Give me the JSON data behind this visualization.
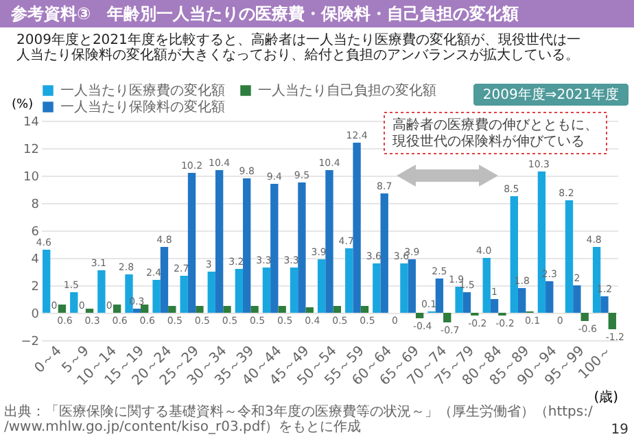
{
  "chart_data": {
    "type": "bar",
    "title": "参考資料③　年齢別一人当たりの医療費・保険料・自己負担の変化額",
    "subtitle": "2009年度と2021年度を比較すると、高齢者は一人当たり医療費の変化額が、現役世代は一人当たり保険料の変化額が大きくなっており、給付と負担のアンバランスが拡大している。",
    "ylabel": "(%)",
    "xlabel": "(歳)",
    "categories": [
      "0～4",
      "5～9",
      "10～14",
      "15～19",
      "20～24",
      "25～29",
      "30～34",
      "35～39",
      "40～44",
      "45～49",
      "50～54",
      "55～59",
      "60～64",
      "65～69",
      "70～74",
      "75～79",
      "80～84",
      "85～89",
      "90～94",
      "95～99",
      "100～"
    ],
    "series": [
      {
        "name": "一人当たり医療費の変化額",
        "color": "#1aa7e0",
        "values": [
          4.6,
          1.5,
          3.1,
          2.8,
          2.4,
          2.7,
          3,
          3.2,
          3.3,
          3.3,
          3.9,
          4.7,
          3.6,
          3.6,
          0.1,
          1.9,
          4.0,
          8.5,
          10.3,
          8.2,
          4.8
        ],
        "value_labels": [
          "4.6",
          "1.5",
          "3.1",
          "2.8",
          "2.4",
          "2.7",
          "3",
          "3.2",
          "3.3",
          "3.3",
          "3.9",
          "4.7",
          "3.6",
          "3.6",
          "0.1",
          "1.9",
          "4.0",
          "8.5",
          "10.3",
          "8.2",
          "4.8"
        ]
      },
      {
        "name": "一人当たり保険料の変化額",
        "color": "#2176c4",
        "values": [
          0,
          0,
          0,
          0.3,
          4.8,
          10.2,
          10.4,
          9.8,
          9.4,
          9.5,
          10.4,
          12.4,
          8.7,
          3.9,
          2.5,
          1.5,
          1,
          1.8,
          2.3,
          2,
          1.2
        ],
        "value_labels": [
          "0",
          "0",
          "0",
          "0.3",
          "4.8",
          "10.2",
          "10.4",
          "9.8",
          "9.4",
          "9.5",
          "10.4",
          "12.4",
          "8.7",
          "3.9",
          "2.5",
          "1.5",
          "1",
          "1.8",
          "2.3",
          "2",
          "1.2"
        ]
      },
      {
        "name": "一人当たり自己負担の変化額",
        "color": "#2e7d3e",
        "values": [
          0.6,
          0.3,
          0.6,
          0.6,
          0.5,
          0.5,
          0.5,
          0.5,
          0.5,
          0.4,
          0.5,
          0.5,
          0,
          -0.4,
          -0.7,
          -0.2,
          -0.2,
          0.1,
          0,
          -0.6,
          -1.2
        ],
        "value_labels": [
          "0.6",
          "0.3",
          "0.6",
          "0.6",
          "0.5",
          "0.5",
          "0.5",
          "0.5",
          "0.5",
          "0.4",
          "0.5",
          "0.5",
          "0",
          "-0.4",
          "-0.7",
          "-0.2",
          "-0.2",
          "0.1",
          "0",
          "-0.6",
          "-1.2"
        ]
      }
    ],
    "ylim": [
      -2,
      14
    ],
    "yticks": [
      -2,
      0,
      2,
      4,
      6,
      8,
      10,
      12,
      14
    ],
    "grid": "y",
    "legend": "top left",
    "annotations": [
      "高齢者の医療費の伸びとともに、現役世代の保険料が伸びている",
      "2009年度⇒2021年度",
      "出典：「医療保険に関する基礎資料～令和3年度の医療費等の状況～」（厚生労働省）（https://www.mhlw.go.jp/content/kiso_r03.pdf）をもとに作成",
      "19"
    ]
  }
}
